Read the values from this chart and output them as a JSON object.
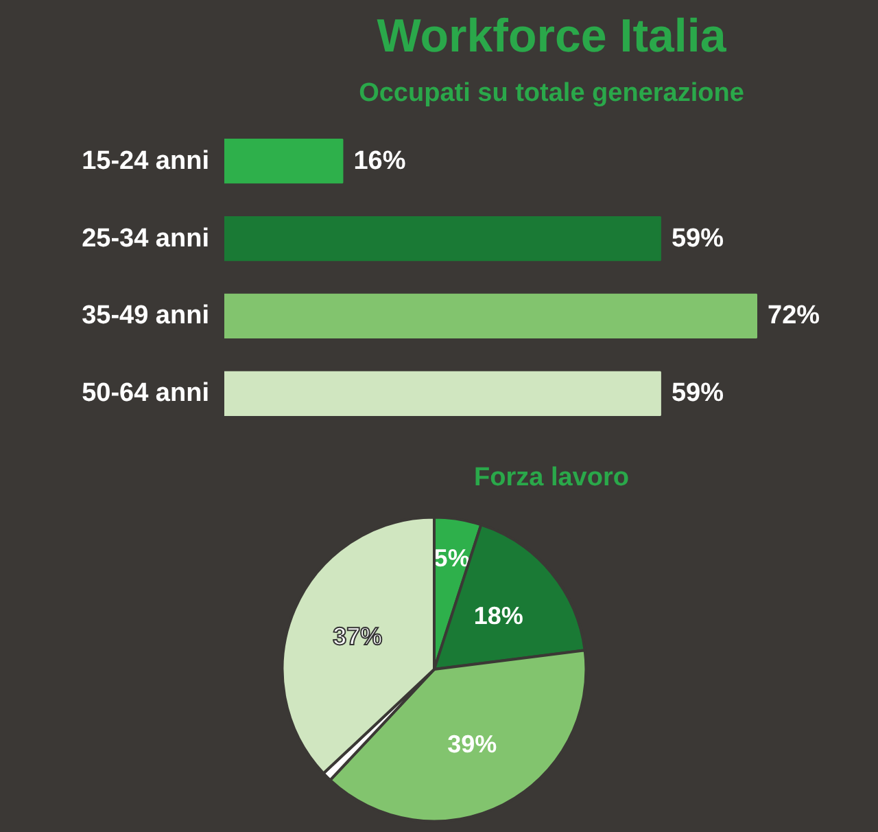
{
  "chart_data": [
    {
      "type": "bar",
      "orientation": "horizontal",
      "title": "Workforce Italia",
      "subtitle": "Occupati su totale generazione",
      "categories": [
        "15-24 anni",
        "25-34 anni",
        "35-49 anni",
        "50-64 anni"
      ],
      "values": [
        16,
        59,
        72,
        59
      ],
      "colors": [
        "#2eb04b",
        "#1a7a35",
        "#82c46e",
        "#d0e6c0"
      ],
      "value_labels": [
        "16%",
        "59%",
        "72%",
        "59%"
      ]
    },
    {
      "type": "pie",
      "title": "Forza lavoro",
      "categories": [
        null,
        null,
        null,
        null,
        null
      ],
      "values": [
        5,
        18,
        39,
        1,
        37
      ],
      "colors": [
        "#2eb04b",
        "#1a7a35",
        "#82c46e",
        "#ffffff",
        "#d0e6c0"
      ],
      "value_labels": [
        "5%",
        "18%",
        "39%",
        null,
        "37%"
      ]
    }
  ]
}
